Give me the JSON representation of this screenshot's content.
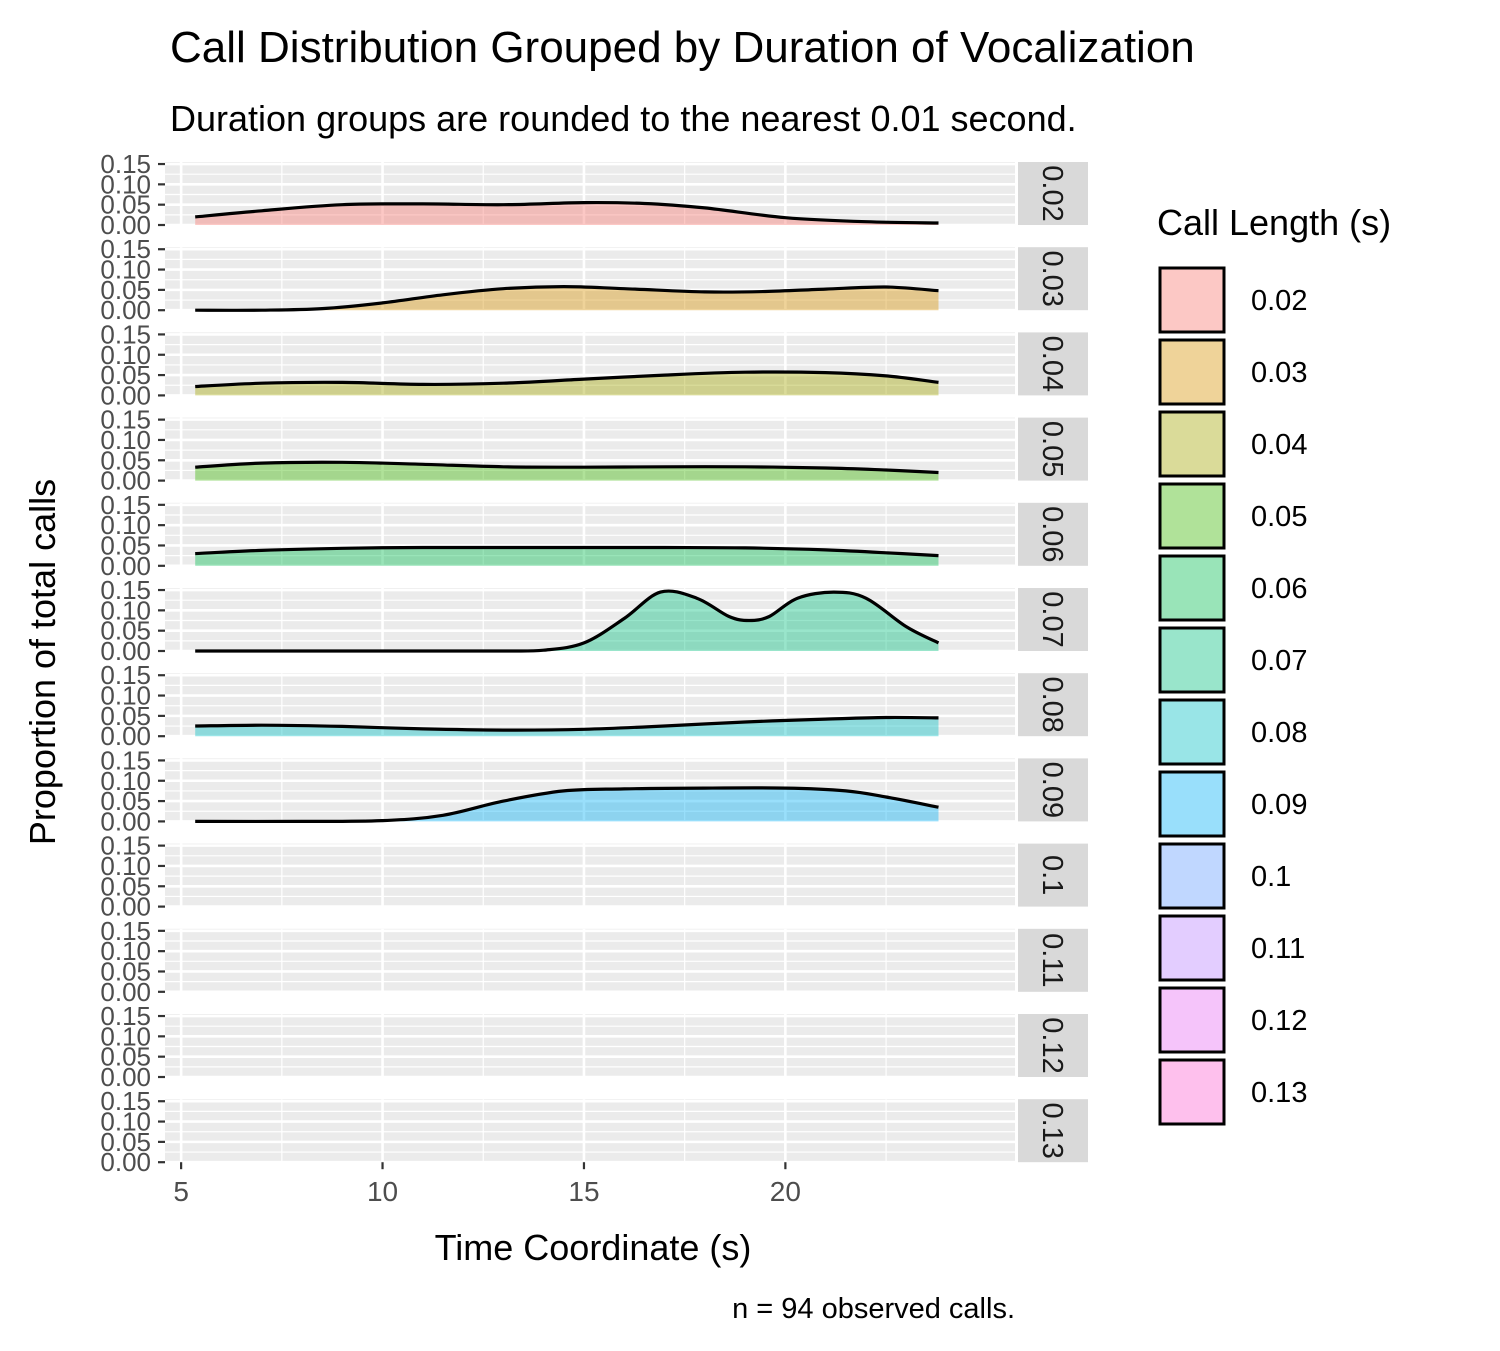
{
  "chart_data": {
    "type": "area",
    "subtype": "faceted density",
    "title": "Call Distribution Grouped by Duration of Vocalization",
    "subtitle": "Duration groups are rounded to the nearest 0.01 second.",
    "xlabel": "Time Coordinate (s)",
    "ylabel": "Proportion of total calls",
    "caption": "n = 94 observed calls.",
    "xlim": [
      4.6,
      25.7
    ],
    "ylim": [
      0,
      0.155
    ],
    "x_ticks": [
      5,
      10,
      15,
      20
    ],
    "y_ticks": [
      0,
      0.05,
      0.1,
      0.15
    ],
    "y_tick_labels": [
      "0.00",
      "0.05",
      "0.10",
      "0.15"
    ],
    "grid": true,
    "legend": {
      "title": "Call Length (s)",
      "position": "right"
    },
    "panels": [
      {
        "label": "0.02",
        "color": "#F8766D",
        "x": [
          5.35,
          7,
          9,
          11,
          13,
          15,
          16.5,
          18,
          20,
          22,
          23.8
        ],
        "y": [
          0.02,
          0.035,
          0.05,
          0.052,
          0.05,
          0.055,
          0.053,
          0.042,
          0.018,
          0.008,
          0.005
        ]
      },
      {
        "label": "0.03",
        "color": "#D89000",
        "x": [
          5.35,
          7,
          8.5,
          10,
          11.5,
          13,
          14.5,
          16,
          18,
          19.5,
          21,
          22.5,
          23.8
        ],
        "y": [
          0.0,
          0.0,
          0.004,
          0.018,
          0.038,
          0.053,
          0.058,
          0.053,
          0.045,
          0.046,
          0.052,
          0.057,
          0.048
        ]
      },
      {
        "label": "0.04",
        "color": "#A3A500",
        "x": [
          5.35,
          7,
          9,
          11,
          13,
          15,
          17,
          19,
          21,
          22.5,
          23.8
        ],
        "y": [
          0.022,
          0.03,
          0.032,
          0.027,
          0.03,
          0.04,
          0.05,
          0.057,
          0.056,
          0.048,
          0.032
        ]
      },
      {
        "label": "0.05",
        "color": "#39B600",
        "x": [
          5.35,
          7,
          9,
          11,
          13,
          15,
          17,
          19,
          21,
          22.5,
          23.8
        ],
        "y": [
          0.033,
          0.043,
          0.045,
          0.04,
          0.034,
          0.033,
          0.034,
          0.034,
          0.031,
          0.026,
          0.02
        ]
      },
      {
        "label": "0.06",
        "color": "#00BB4E",
        "x": [
          5.35,
          7,
          9,
          11,
          13,
          15,
          17,
          19,
          21,
          22.5,
          23.8
        ],
        "y": [
          0.03,
          0.038,
          0.043,
          0.045,
          0.045,
          0.045,
          0.045,
          0.044,
          0.039,
          0.032,
          0.025
        ]
      },
      {
        "label": "0.07",
        "color": "#00BF7D",
        "x": [
          5.35,
          8,
          11,
          13,
          14,
          15,
          16,
          16.9,
          17.8,
          18.6,
          19.1,
          19.6,
          20.3,
          21.2,
          22,
          23,
          23.8
        ],
        "y": [
          0.0,
          0.0,
          0.0,
          0.0,
          0.002,
          0.02,
          0.08,
          0.145,
          0.13,
          0.085,
          0.075,
          0.085,
          0.13,
          0.145,
          0.13,
          0.06,
          0.02
        ]
      },
      {
        "label": "0.08",
        "color": "#00BFC4",
        "x": [
          5.35,
          7,
          9,
          11,
          13,
          15,
          17,
          19,
          21,
          22.5,
          23.8
        ],
        "y": [
          0.025,
          0.027,
          0.024,
          0.018,
          0.015,
          0.017,
          0.025,
          0.035,
          0.042,
          0.046,
          0.045
        ]
      },
      {
        "label": "0.09",
        "color": "#00B0F6",
        "x": [
          5.35,
          8,
          10,
          11.5,
          13,
          14.5,
          16,
          18,
          20,
          21.5,
          22.5,
          23.8
        ],
        "y": [
          0.0,
          0.0,
          0.002,
          0.015,
          0.05,
          0.075,
          0.08,
          0.082,
          0.082,
          0.075,
          0.06,
          0.035
        ]
      },
      {
        "label": "0.1",
        "color": "#619CFF",
        "x": [],
        "y": []
      },
      {
        "label": "0.11",
        "color": "#B983FF",
        "x": [],
        "y": []
      },
      {
        "label": "0.12",
        "color": "#E76BF3",
        "x": [],
        "y": []
      },
      {
        "label": "0.13",
        "color": "#FD61D1",
        "x": [],
        "y": []
      }
    ]
  }
}
